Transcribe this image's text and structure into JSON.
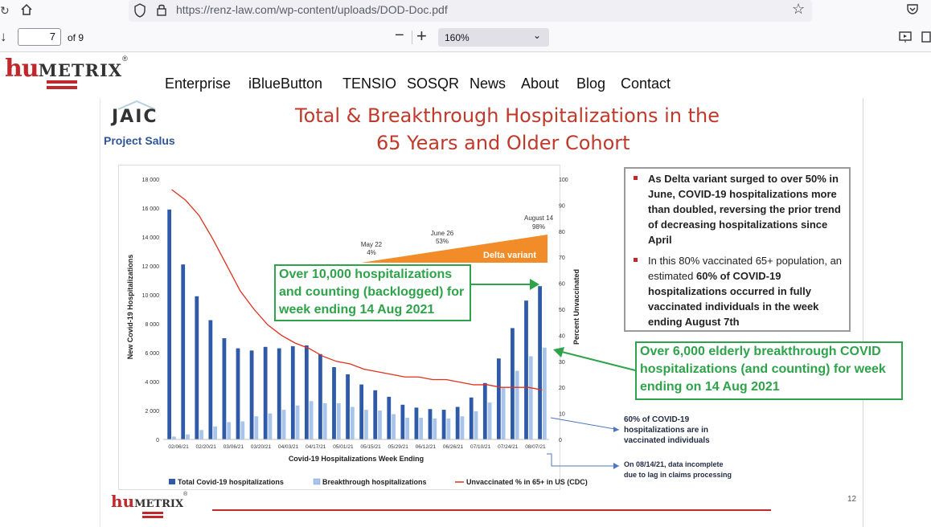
{
  "browser": {
    "url": "https://renz-law.com/wp-content/uploads/DOD-Doc.pdf"
  },
  "pdf_toolbar": {
    "page_number": "7",
    "page_total": "of 9",
    "zoom": "160%"
  },
  "site": {
    "logo_part1": "hu",
    "logo_part2": "METRIX",
    "nav_items": [
      "Enterprise",
      "iBlueButton",
      "TENSIO",
      "SOSQR",
      "News",
      "About",
      "Blog",
      "Contact"
    ]
  },
  "slide": {
    "org_logo": "JAIC",
    "org_name": "Project Salus",
    "title_line1": "Total & Breakthrough Hospitalizations in the",
    "title_line2": "65 Years and Older Cohort",
    "bullets": [
      "As Delta variant surged to over 50% in June, COVID-19 hospitalizations more than doubled, reversing the prior trend of decreasing hospitalizations since April",
      "In this 80% vaccinated 65+ population, an estimated 60% of COVID-19 hospitalizations occurred in fully vaccinated individuals in the week ending August 7th"
    ],
    "callout_top": "Over 10,000 hospitalizations and counting (backlogged) for week ending 14 Aug 2021",
    "callout_right": "Over 6,000 elderly breakthrough COVID hospitalizations (and counting) for week ending on 14 Aug 2021",
    "note_vaccinated": "60% of COVID-19 hospitalizations are in vaccinated individuals",
    "note_incomplete": "On 08/14/21, data incomplete due to lag in claims processing",
    "footer_logo_part1": "hu",
    "footer_logo_part2": "METRIX",
    "page_number": "12"
  },
  "chart_data": {
    "type": "bar",
    "xlabel": "Covid-19 Hospitalizations Week Ending",
    "ylabel": "New Covid-19 Hospitalizations",
    "y2label": "Percent Unvaccinated",
    "ylim": [
      0,
      18000
    ],
    "y2lim": [
      0,
      100
    ],
    "yticks": [
      "0",
      "2 000",
      "4 000",
      "6 000",
      "8 000",
      "10 000",
      "12 000",
      "14 000",
      "16 000",
      "18 000"
    ],
    "y2ticks": [
      "0",
      "10",
      "20",
      "30",
      "40",
      "50",
      "60",
      "70",
      "80",
      "90",
      "100"
    ],
    "tick_labels": [
      "02/06/21",
      "02/20/21",
      "03/06/21",
      "03/20/21",
      "04/03/21",
      "04/17/21",
      "05/01/21",
      "05/15/21",
      "05/29/21",
      "06/12/21",
      "06/26/21",
      "07/10/21",
      "07/24/21",
      "08/07/21"
    ],
    "series": [
      {
        "name": "Total Covid-19 hospitalizations",
        "color": "#2e5aa8",
        "values": [
          15900,
          12100,
          9900,
          8250,
          7000,
          6300,
          6150,
          6400,
          6300,
          6450,
          6500,
          5900,
          5000,
          4500,
          3800,
          3400,
          2950,
          2400,
          2200,
          2100,
          2050,
          2250,
          2900,
          3900,
          5600,
          7700,
          9600,
          10600
        ]
      },
      {
        "name": "Breakthrough hospitalizations",
        "color": "#a9c4eb",
        "values": [
          200,
          350,
          650,
          900,
          1200,
          1250,
          1600,
          1800,
          2050,
          2350,
          2650,
          2500,
          2500,
          2250,
          2050,
          2000,
          1750,
          1500,
          1500,
          1450,
          1450,
          1600,
          1950,
          2550,
          3550,
          4750,
          5750,
          6350
        ]
      },
      {
        "name": "Unvaccinated % in 65+ in US (CDC)",
        "color": "#e0301e",
        "values": [
          96,
          92,
          86,
          77,
          67,
          57,
          50,
          44,
          40,
          37,
          35,
          32,
          30,
          29,
          27,
          26,
          25,
          24,
          24,
          23,
          23,
          22,
          21,
          21,
          20,
          20,
          20,
          19
        ]
      }
    ],
    "annotations": [
      {
        "label": "May 22",
        "value": "4%"
      },
      {
        "label": "June 26",
        "value": "53%"
      },
      {
        "label": "August 14",
        "value": "98%"
      },
      {
        "label": "Delta variant"
      }
    ]
  }
}
